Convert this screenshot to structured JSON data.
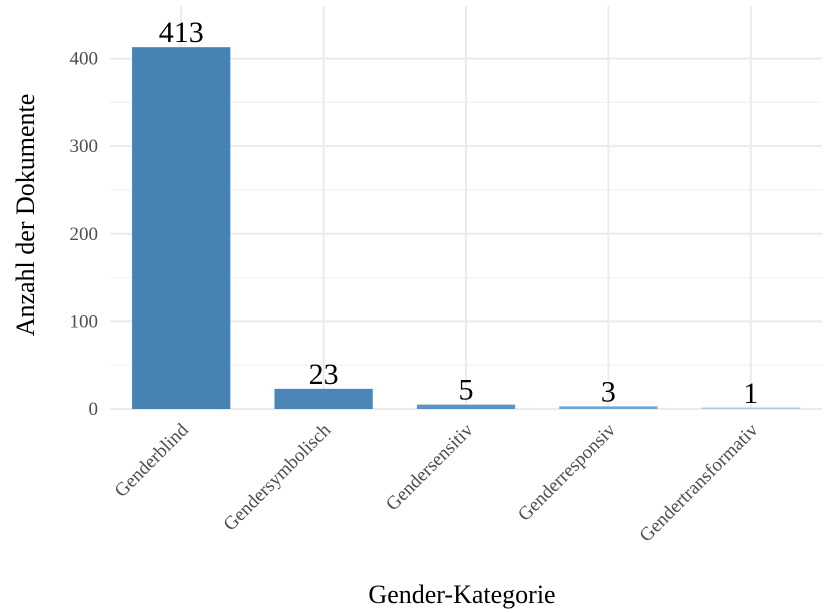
{
  "chart_data": {
    "type": "bar",
    "title": "",
    "xlabel": "Gender-Kategorie",
    "ylabel": "Anzahl der Dokumente",
    "categories": [
      "Genderblind",
      "Gendersymbolisch",
      "Gendersensitiv",
      "Genderresponsiv",
      "Gendertransformativ"
    ],
    "values": [
      413,
      23,
      5,
      3,
      1
    ],
    "value_labels": [
      "413",
      "23",
      "5",
      "3",
      "1"
    ],
    "ylim": [
      0,
      460
    ],
    "yticks": [
      0,
      100,
      200,
      300,
      400
    ],
    "ytick_labels": [
      "0",
      "100",
      "200",
      "300",
      "400"
    ],
    "grid": true,
    "legend": "none",
    "colors": [
      "#4682b4",
      "#4a86b7",
      "#5a93c3",
      "#6ea6d4",
      "#a9ccea"
    ]
  }
}
